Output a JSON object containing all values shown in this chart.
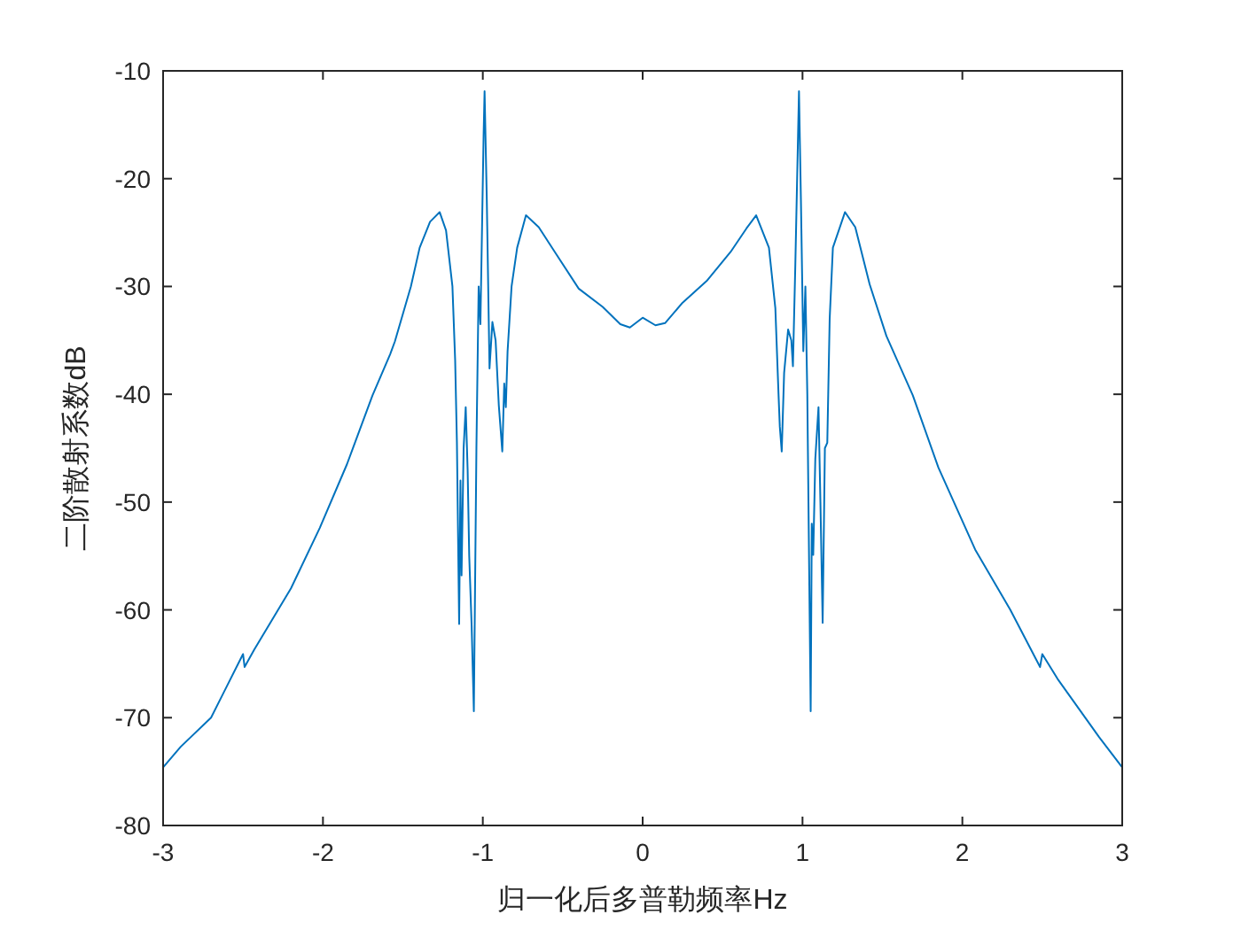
{
  "chart_data": {
    "type": "line",
    "xlabel": "归一化后多普勒频率Hz",
    "ylabel": "二阶散射系数dB",
    "xlim": [
      -3,
      3
    ],
    "xticks": [
      -3,
      -2,
      -1,
      0,
      1,
      2,
      3
    ],
    "ylim": [
      -80,
      -10
    ],
    "yticks": [
      -80,
      -70,
      -60,
      -50,
      -40,
      -30,
      -20,
      -10
    ],
    "grid": false,
    "line_style": "solid",
    "marker": "none",
    "series": [
      {
        "color": "#0072bd",
        "x": [
          -3.0,
          -2.89,
          -2.7,
          -2.5,
          -2.49,
          -2.43,
          -2.2,
          -2.02,
          -1.85,
          -1.69,
          -1.58,
          -1.55,
          -1.45,
          -1.395,
          -1.33,
          -1.27,
          -1.23,
          -1.19,
          -1.173,
          -1.162,
          -1.148,
          -1.14,
          -1.133,
          -1.12,
          -1.107,
          -1.095,
          -1.085,
          -1.07,
          -1.056,
          -1.04,
          -1.026,
          -1.015,
          -0.995,
          -0.989,
          -0.975,
          -0.958,
          -0.94,
          -0.92,
          -0.9,
          -0.878,
          -0.866,
          -0.856,
          -0.845,
          -0.82,
          -0.785,
          -0.73,
          -0.65,
          -0.545,
          -0.4,
          -0.25,
          -0.14,
          -0.08,
          0,
          0.08,
          0.14,
          0.25,
          0.4,
          0.55,
          0.65,
          0.71,
          0.79,
          0.83,
          0.85,
          0.858,
          0.87,
          0.885,
          0.91,
          0.93,
          0.94,
          0.955,
          0.972,
          0.978,
          0.99,
          1.005,
          1.018,
          1.03,
          1.051,
          1.058,
          1.067,
          1.08,
          1.1,
          1.112,
          1.126,
          1.14,
          1.155,
          1.17,
          1.19,
          1.266,
          1.33,
          1.42,
          1.525,
          1.69,
          1.85,
          2.08,
          2.3,
          2.486,
          2.5,
          2.6,
          2.855,
          3.0
        ],
        "values": [
          -74.6,
          -72.7,
          -70.0,
          -64.1,
          -65.3,
          -63.7,
          -58.0,
          -52.4,
          -46.5,
          -40.1,
          -36.3,
          -35.1,
          -30.0,
          -26.4,
          -24.0,
          -23.1,
          -24.8,
          -30,
          -36.8,
          -44.5,
          -61.3,
          -48,
          -56.8,
          -45,
          -41.2,
          -47,
          -55,
          -61.4,
          -69.4,
          -45,
          -30.0,
          -33.5,
          -16,
          -11.9,
          -22,
          -37.6,
          -33.3,
          -35,
          -41,
          -45.3,
          -39,
          -41.2,
          -36,
          -30,
          -26.4,
          -23.4,
          -24.5,
          -26.9,
          -30.2,
          -31.9,
          -33.5,
          -33.8,
          -32.9,
          -33.6,
          -33.4,
          -31.5,
          -29.5,
          -26.8,
          -24.6,
          -23.4,
          -26.4,
          -32,
          -40,
          -43,
          -45.3,
          -38,
          -34,
          -35,
          -37.4,
          -28,
          -16,
          -11.9,
          -22,
          -36,
          -30.0,
          -40,
          -69.4,
          -52,
          -54.9,
          -46,
          -41.2,
          -50,
          -61.2,
          -45,
          -44.5,
          -33,
          -26.4,
          -23.1,
          -24.5,
          -29.8,
          -34.6,
          -40.1,
          -46.8,
          -54.4,
          -60.0,
          -65.3,
          -64.1,
          -66.5,
          -71.8,
          -74.6
        ]
      }
    ]
  }
}
